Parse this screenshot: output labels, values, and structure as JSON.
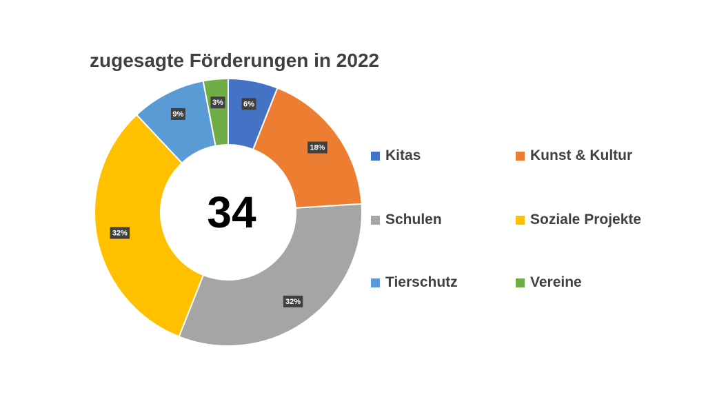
{
  "chart_data": {
    "type": "pie",
    "title": "zugesagte Förderungen in 2022",
    "center_value": "34",
    "categories": [
      "Kitas",
      "Kunst & Kultur",
      "Schulen",
      "Soziale Projekte",
      "Tierschutz",
      "Vereine"
    ],
    "values": [
      6,
      18,
      32,
      32,
      9,
      3
    ],
    "labels": [
      "6%",
      "18%",
      "32%",
      "32%",
      "9%",
      "3%"
    ],
    "colors": [
      "#4472C4",
      "#ED7D31",
      "#A5A5A5",
      "#FFC000",
      "#5B9BD5",
      "#70AD47"
    ],
    "legend_position": "right"
  }
}
